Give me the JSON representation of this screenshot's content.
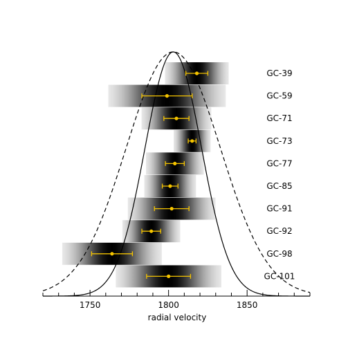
{
  "chart_data": {
    "type": "line",
    "xlabel": "radial velocity",
    "xlim": [
      1720,
      1890
    ],
    "x_ticks": [
      "1750",
      "1800",
      "1850"
    ],
    "x_tick_values": [
      1750,
      1800,
      1850
    ],
    "ylim": [
      0,
      1
    ],
    "curves": [
      {
        "style": "solid",
        "mean": 1803,
        "sigma": 18,
        "peak": 1.0
      },
      {
        "style": "dashed",
        "mean": 1803,
        "sigma": 30,
        "peak": 1.0
      }
    ],
    "marker_color": "#f5c400",
    "band_color": "#000000",
    "clusters": [
      {
        "label": "GC-39",
        "v": 1818,
        "err": 7
      },
      {
        "label": "GC-59",
        "v": 1799,
        "err": 16
      },
      {
        "label": "GC-71",
        "v": 1805,
        "err": 8
      },
      {
        "label": "GC-73",
        "v": 1815,
        "err": 2.5
      },
      {
        "label": "GC-77",
        "v": 1804,
        "err": 6
      },
      {
        "label": "GC-85",
        "v": 1801,
        "err": 5
      },
      {
        "label": "GC-91",
        "v": 1802,
        "err": 11
      },
      {
        "label": "GC-92",
        "v": 1789,
        "err": 6
      },
      {
        "label": "GC-98",
        "v": 1764,
        "err": 13
      },
      {
        "label": "GC-101",
        "v": 1800,
        "err": 14
      }
    ]
  }
}
